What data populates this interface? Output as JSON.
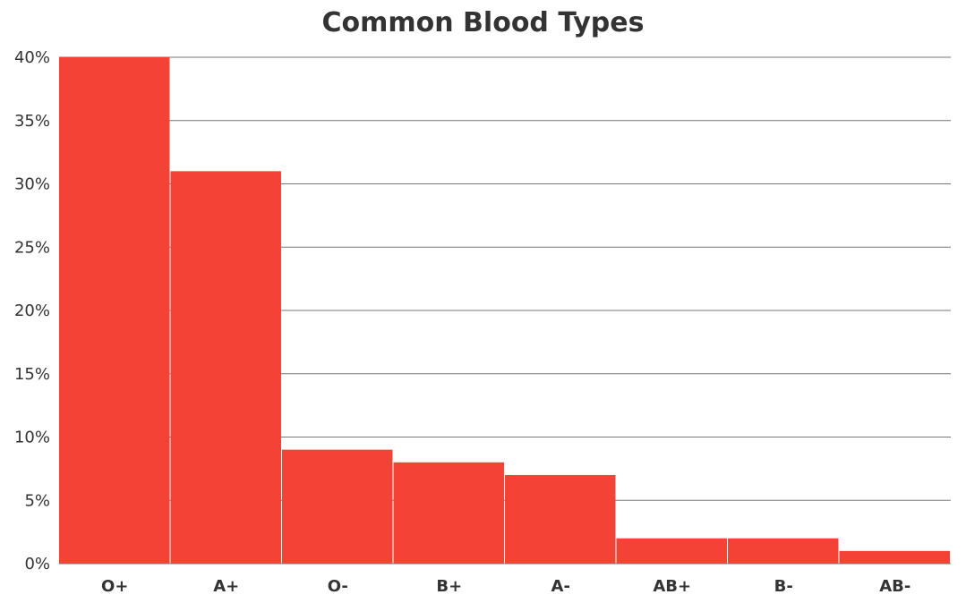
{
  "chart_data": {
    "type": "bar",
    "title": "Common Blood Types",
    "xlabel": "",
    "ylabel": "",
    "categories": [
      "O+",
      "A+",
      "O-",
      "B+",
      "A-",
      "AB+",
      "B-",
      "AB-"
    ],
    "values": [
      40,
      31,
      9,
      8,
      7,
      2,
      2,
      1
    ],
    "value_unit": "%",
    "ylim": [
      0,
      40
    ],
    "yticks": [
      "0%",
      "5%",
      "10%",
      "15%",
      "20%",
      "25%",
      "30%",
      "35%",
      "40%"
    ],
    "grid": "horizontal",
    "legend": "none",
    "colors": {
      "bar": "#f44336",
      "gridline": "#777777",
      "text": "#333333"
    }
  }
}
